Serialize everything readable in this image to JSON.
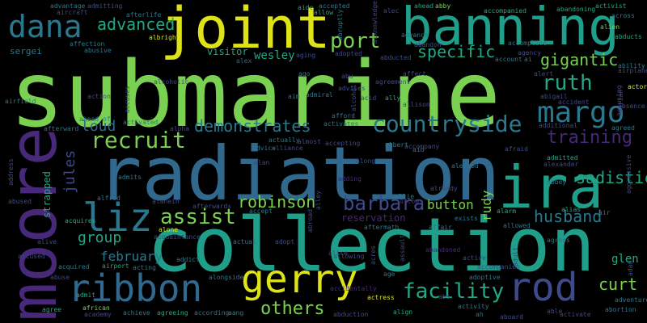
{
  "background": "#000000",
  "palette": {
    "yellow": "#dde318",
    "green_light": "#7ad151",
    "green": "#22a884",
    "teal": "#1f9e89",
    "teal_dark": "#2a788e",
    "blue": "#31688e",
    "indigo": "#3e4a89",
    "purple": "#482878",
    "violet": "#440154"
  },
  "words": [
    {
      "text": "submarine",
      "color": "#7ad151"
    },
    {
      "text": "collection",
      "color": "#1f9e89"
    },
    {
      "text": "radiation",
      "color": "#31688e"
    },
    {
      "text": "ira",
      "color": "#1f9e89"
    },
    {
      "text": "joint",
      "color": "#dde318"
    },
    {
      "text": "banning",
      "color": "#1f9e89"
    },
    {
      "text": "moore",
      "color": "#482878"
    },
    {
      "text": "gerry",
      "color": "#dde318"
    },
    {
      "text": "rod",
      "color": "#3e4a89"
    },
    {
      "text": "ribbon",
      "color": "#31688e"
    },
    {
      "text": "liz",
      "color": "#2a788e"
    },
    {
      "text": "dana",
      "color": "#2a788e"
    },
    {
      "text": "margo",
      "color": "#2a788e"
    },
    {
      "text": "countryside",
      "color": "#2a788e"
    },
    {
      "text": "training",
      "color": "#482878"
    },
    {
      "text": "barbara",
      "color": "#3e4a89"
    },
    {
      "text": "facility",
      "color": "#22a884"
    },
    {
      "text": "recruit",
      "color": "#7ad151"
    },
    {
      "text": "assist",
      "color": "#7ad151"
    },
    {
      "text": "husband",
      "color": "#2a788e"
    },
    {
      "text": "ruth",
      "color": "#22a884"
    },
    {
      "text": "port",
      "color": "#7ad151"
    },
    {
      "text": "demonstrates",
      "color": "#2a788e"
    },
    {
      "text": "robinson",
      "color": "#7ad151"
    },
    {
      "text": "others",
      "color": "#7ad151"
    },
    {
      "text": "advanced",
      "color": "#22a884"
    },
    {
      "text": "specific",
      "color": "#22a884"
    },
    {
      "text": "gigantic",
      "color": "#7ad151"
    },
    {
      "text": "sadistic",
      "color": "#22a884"
    },
    {
      "text": "curt",
      "color": "#7ad151"
    },
    {
      "text": "loud",
      "color": "#31688e"
    },
    {
      "text": "group",
      "color": "#22a884"
    },
    {
      "text": "february",
      "color": "#2a788e"
    },
    {
      "text": "button",
      "color": "#7ad151"
    },
    {
      "text": "jules",
      "color": "#3e4a89"
    },
    {
      "text": "glen",
      "color": "#22a884"
    },
    {
      "text": "rudy",
      "color": "#7ad151"
    },
    {
      "text": "sergei",
      "color": "#2a788e"
    },
    {
      "text": "wesley",
      "color": "#22a884"
    },
    {
      "text": "visitor",
      "color": "#22a884"
    },
    {
      "text": "strapped",
      "color": "#22a884"
    },
    {
      "text": "reservation",
      "color": "#482878"
    },
    {
      "text": "adding",
      "color": "#482878"
    },
    {
      "text": "albert",
      "color": "#2a788e"
    },
    {
      "text": "alex",
      "color": "#31688e"
    },
    {
      "text": "alice",
      "color": "#3e4a89"
    },
    {
      "text": "alert",
      "color": "#3e4a89"
    },
    {
      "text": "allie",
      "color": "#2a788e"
    },
    {
      "text": "alone",
      "color": "#dde318"
    },
    {
      "text": "actual",
      "color": "#2a788e"
    },
    {
      "text": "actress",
      "color": "#dde318"
    },
    {
      "text": "active",
      "color": "#3e4a89"
    },
    {
      "text": "airport",
      "color": "#22a884"
    },
    {
      "text": "alfred",
      "color": "#2a788e"
    },
    {
      "text": "allowed",
      "color": "#2a788e"
    },
    {
      "text": "agrees",
      "color": "#2a788e"
    },
    {
      "text": "abduction",
      "color": "#3e4a89"
    },
    {
      "text": "accompany",
      "color": "#3e4a89"
    },
    {
      "text": "adopt",
      "color": "#3e4a89"
    },
    {
      "text": "alarm",
      "color": "#22a884"
    },
    {
      "text": "affair",
      "color": "#2a788e"
    },
    {
      "text": "accidentally",
      "color": "#482878"
    },
    {
      "text": "aftermath",
      "color": "#2a788e"
    },
    {
      "text": "alias",
      "color": "#22a884"
    },
    {
      "text": "abused",
      "color": "#3e4a89"
    },
    {
      "text": "alive",
      "color": "#3e4a89"
    },
    {
      "text": "abuse",
      "color": "#3e4a89"
    },
    {
      "text": "admit",
      "color": "#22a884"
    },
    {
      "text": "agree",
      "color": "#22a884"
    },
    {
      "text": "academy",
      "color": "#3e4a89"
    },
    {
      "text": "african",
      "color": "#7ad151"
    },
    {
      "text": "achieve",
      "color": "#2a788e"
    },
    {
      "text": "agreeing",
      "color": "#22a884"
    },
    {
      "text": "according",
      "color": "#2a788e"
    },
    {
      "text": "aang",
      "color": "#2a788e"
    },
    {
      "text": "align",
      "color": "#22a884"
    },
    {
      "text": "activity",
      "color": "#2a788e"
    },
    {
      "text": "aboard",
      "color": "#3e4a89"
    },
    {
      "text": "activate",
      "color": "#3e4a89"
    },
    {
      "text": "abortion",
      "color": "#2a788e"
    },
    {
      "text": "adventure",
      "color": "#2a788e"
    },
    {
      "text": "afraid",
      "color": "#3e4a89"
    },
    {
      "text": "admitted",
      "color": "#22a884"
    },
    {
      "text": "alexander",
      "color": "#3e4a89"
    },
    {
      "text": "abbey",
      "color": "#2a788e"
    },
    {
      "text": "agreed",
      "color": "#2a788e"
    },
    {
      "text": "additional",
      "color": "#3e4a89"
    },
    {
      "text": "accident",
      "color": "#3e4a89"
    },
    {
      "text": "abigail",
      "color": "#3e4a89"
    },
    {
      "text": "absence",
      "color": "#3e4a89"
    },
    {
      "text": "actor",
      "color": "#dde318"
    },
    {
      "text": "ability",
      "color": "#2a788e"
    },
    {
      "text": "abducts",
      "color": "#22a884"
    },
    {
      "text": "airplane",
      "color": "#3e4a89"
    },
    {
      "text": "across",
      "color": "#2a788e"
    },
    {
      "text": "activist",
      "color": "#22a884"
    },
    {
      "text": "alien",
      "color": "#7ad151"
    },
    {
      "text": "abandoning",
      "color": "#22a884"
    },
    {
      "text": "accompanied",
      "color": "#22a884"
    },
    {
      "text": "abby",
      "color": "#7ad151"
    },
    {
      "text": "ahead",
      "color": "#22a884"
    },
    {
      "text": "alec",
      "color": "#3e4a89"
    },
    {
      "text": "accepted",
      "color": "#2a788e"
    },
    {
      "text": "allow",
      "color": "#22a884"
    },
    {
      "text": "aide",
      "color": "#22a884"
    },
    {
      "text": "admitting",
      "color": "#3e4a89"
    },
    {
      "text": "advantage",
      "color": "#2a788e"
    },
    {
      "text": "aircraft",
      "color": "#3e4a89"
    },
    {
      "text": "afterlife",
      "color": "#2a788e"
    },
    {
      "text": "albright",
      "color": "#dde318"
    },
    {
      "text": "affection",
      "color": "#2a788e"
    },
    {
      "text": "abusive",
      "color": "#2a788e"
    },
    {
      "text": "alcoholic",
      "color": "#3e4a89"
    },
    {
      "text": "aging",
      "color": "#3e4a89"
    },
    {
      "text": "abu",
      "color": "#3e4a89"
    },
    {
      "text": "ago",
      "color": "#2a788e"
    },
    {
      "text": "adopted",
      "color": "#3e4a89"
    },
    {
      "text": "abducted",
      "color": "#3e4a89"
    },
    {
      "text": "affect",
      "color": "#3e4a89"
    },
    {
      "text": "agreement",
      "color": "#3e4a89"
    },
    {
      "text": "account",
      "color": "#2a788e"
    },
    {
      "text": "agency",
      "color": "#3e4a89"
    },
    {
      "text": "accomplice",
      "color": "#2a788e"
    },
    {
      "text": "advises",
      "color": "#3e4a89"
    },
    {
      "text": "acid",
      "color": "#3e4a89"
    },
    {
      "text": "ally",
      "color": "#22a884"
    },
    {
      "text": "allison",
      "color": "#3e4a89"
    },
    {
      "text": "admiral",
      "color": "#2a788e"
    },
    {
      "text": "aim",
      "color": "#2a788e"
    },
    {
      "text": "action",
      "color": "#3e4a89"
    },
    {
      "text": "airfield",
      "color": "#2a788e"
    },
    {
      "text": "afterward",
      "color": "#2a788e"
    },
    {
      "text": "activated",
      "color": "#2a788e"
    },
    {
      "text": "alpha",
      "color": "#3e4a89"
    },
    {
      "text": "advice",
      "color": "#2a788e"
    },
    {
      "text": "alliance",
      "color": "#3e4a89"
    },
    {
      "text": "actually",
      "color": "#2a788e"
    },
    {
      "text": "almost",
      "color": "#3e4a89"
    },
    {
      "text": "afford",
      "color": "#2a788e"
    },
    {
      "text": "activates",
      "color": "#2a788e"
    },
    {
      "text": "accepting",
      "color": "#3e4a89"
    },
    {
      "text": "along",
      "color": "#3e4a89"
    },
    {
      "text": "aid",
      "color": "#2a788e"
    },
    {
      "text": "alerted",
      "color": "#2a788e"
    },
    {
      "text": "alan",
      "color": "#3e4a89"
    },
    {
      "text": "admits",
      "color": "#2a788e"
    },
    {
      "text": "alanein",
      "color": "#3e4a89"
    },
    {
      "text": "afterwards",
      "color": "#3e4a89"
    },
    {
      "text": "accept",
      "color": "#2a788e"
    },
    {
      "text": "acquires",
      "color": "#22a884"
    },
    {
      "text": "acquaintance",
      "color": "#3e4a89"
    },
    {
      "text": "accused",
      "color": "#3e4a89"
    },
    {
      "text": "acquired",
      "color": "#2a788e"
    },
    {
      "text": "acting",
      "color": "#2a788e"
    },
    {
      "text": "addict",
      "color": "#2a788e"
    },
    {
      "text": "alongside",
      "color": "#2a788e"
    },
    {
      "text": "allowing",
      "color": "#3e4a89"
    },
    {
      "text": "age",
      "color": "#2a788e"
    },
    {
      "text": "adoptive",
      "color": "#2a788e"
    },
    {
      "text": "accompanies",
      "color": "#3e4a89"
    },
    {
      "text": "exists",
      "color": "#2a788e"
    },
    {
      "text": "allows",
      "color": "#482878"
    },
    {
      "text": "abandoned",
      "color": "#482878"
    },
    {
      "text": "address",
      "color": "#3e4a89"
    },
    {
      "text": "abruptly",
      "color": "#2a788e"
    },
    {
      "text": "advance",
      "color": "#2a788e"
    },
    {
      "text": "acknowledges",
      "color": "#3e4a89"
    },
    {
      "text": "abandon",
      "color": "#3e4a89"
    },
    {
      "text": "accuses",
      "color": "#3e4a89"
    },
    {
      "text": "accusing",
      "color": "#3e4a89"
    },
    {
      "text": "adam",
      "color": "#3e4a89"
    },
    {
      "text": "aggressive",
      "color": "#3e4a89"
    },
    {
      "text": "alley",
      "color": "#3e4a89"
    },
    {
      "text": "alcohol",
      "color": "#3e4a89"
    },
    {
      "text": "abroad",
      "color": "#3e4a89"
    },
    {
      "text": "assault",
      "color": "#3e4a89"
    },
    {
      "text": "adult",
      "color": "#3e4a89"
    },
    {
      "text": "acres",
      "color": "#3e4a89"
    },
    {
      "text": "adrian",
      "color": "#3e4a89"
    },
    {
      "text": "able",
      "color": "#3e4a89"
    },
    {
      "text": "already",
      "color": "#3e4a89"
    },
    {
      "text": "air",
      "color": "#2a788e"
    },
    {
      "text": "abs",
      "color": "#3e4a89"
    },
    {
      "text": "ah",
      "color": "#2a788e"
    },
    {
      "text": "ai",
      "color": "#2a788e"
    },
    {
      "text": "ahead of",
      "color": "#2a788e"
    }
  ]
}
